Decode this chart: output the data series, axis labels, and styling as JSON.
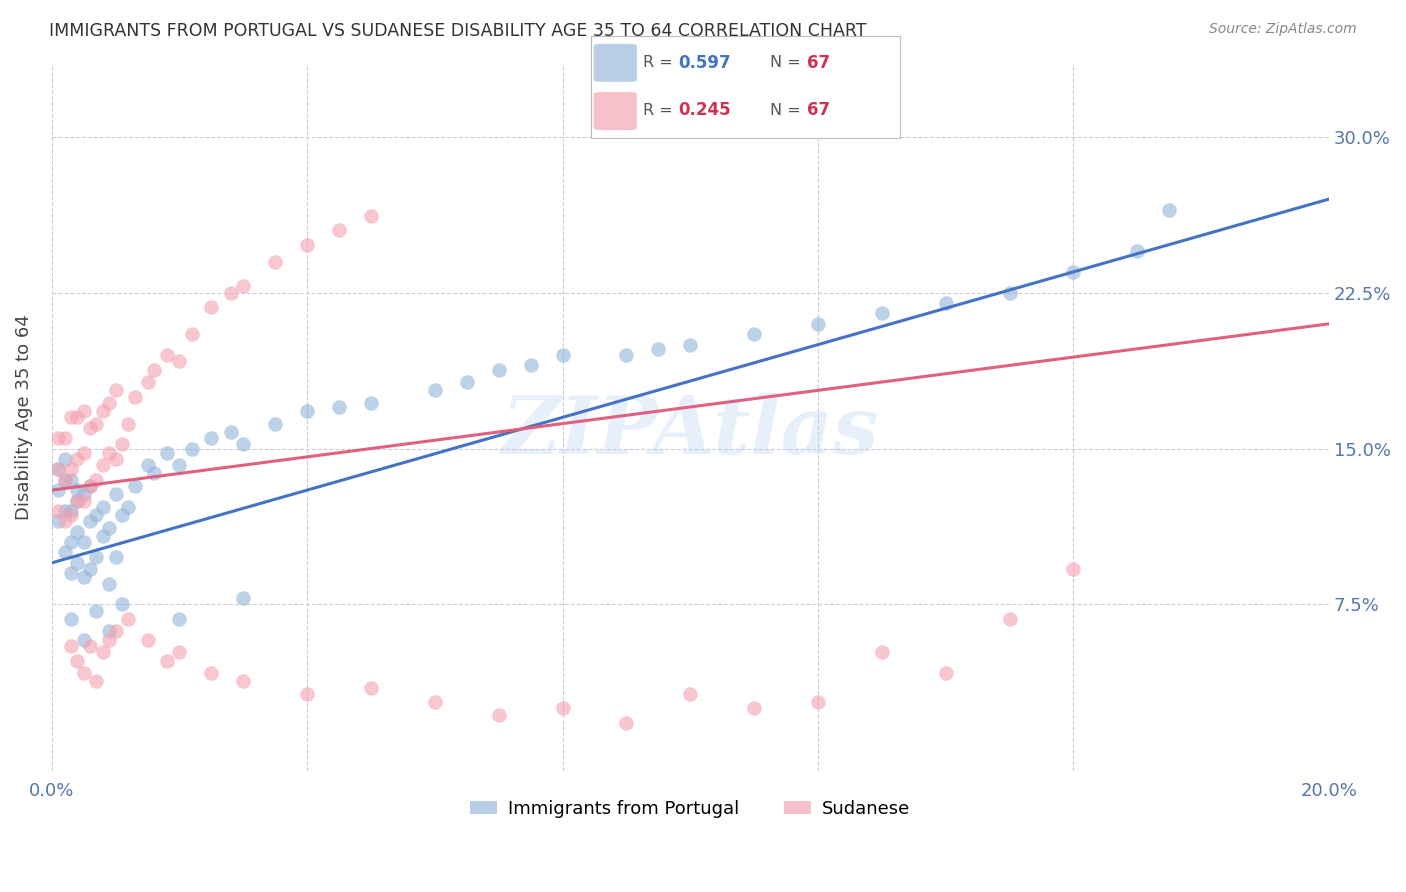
{
  "title": "IMMIGRANTS FROM PORTUGAL VS SUDANESE DISABILITY AGE 35 TO 64 CORRELATION CHART",
  "source": "Source: ZipAtlas.com",
  "ylabel": "Disability Age 35 to 64",
  "xlim": [
    0.0,
    0.2
  ],
  "ylim": [
    -0.005,
    0.335
  ],
  "yticks_right": [
    0.075,
    0.15,
    0.225,
    0.3
  ],
  "ytick_labels_right": [
    "7.5%",
    "15.0%",
    "22.5%",
    "30.0%"
  ],
  "watermark": "ZIPAtlas",
  "legend_label_blue": "Immigrants from Portugal",
  "legend_label_pink": "Sudanese",
  "blue_color": "#92B4D9",
  "pink_color": "#F4A0B0",
  "blue_line_color": "#4472C4",
  "pink_line_color": "#E06080",
  "axis_label_color": "#5577AA",
  "background_color": "#FFFFFF",
  "grid_color": "#CCCCDD",
  "portugal_x": [
    0.001,
    0.001,
    0.001,
    0.002,
    0.002,
    0.002,
    0.002,
    0.003,
    0.003,
    0.003,
    0.003,
    0.004,
    0.004,
    0.004,
    0.004,
    0.005,
    0.005,
    0.005,
    0.006,
    0.006,
    0.006,
    0.007,
    0.007,
    0.008,
    0.008,
    0.009,
    0.009,
    0.01,
    0.01,
    0.011,
    0.012,
    0.013,
    0.015,
    0.016,
    0.018,
    0.02,
    0.022,
    0.025,
    0.028,
    0.03,
    0.035,
    0.04,
    0.045,
    0.05,
    0.06,
    0.065,
    0.07,
    0.075,
    0.08,
    0.09,
    0.095,
    0.1,
    0.11,
    0.12,
    0.13,
    0.14,
    0.15,
    0.16,
    0.17,
    0.175,
    0.003,
    0.005,
    0.007,
    0.009,
    0.011,
    0.02,
    0.03
  ],
  "portugal_y": [
    0.115,
    0.13,
    0.14,
    0.1,
    0.12,
    0.135,
    0.145,
    0.09,
    0.105,
    0.12,
    0.135,
    0.095,
    0.11,
    0.125,
    0.13,
    0.088,
    0.105,
    0.128,
    0.092,
    0.115,
    0.132,
    0.098,
    0.118,
    0.108,
    0.122,
    0.085,
    0.112,
    0.098,
    0.128,
    0.118,
    0.122,
    0.132,
    0.142,
    0.138,
    0.148,
    0.142,
    0.15,
    0.155,
    0.158,
    0.152,
    0.162,
    0.168,
    0.17,
    0.172,
    0.178,
    0.182,
    0.188,
    0.19,
    0.195,
    0.195,
    0.198,
    0.2,
    0.205,
    0.21,
    0.215,
    0.22,
    0.225,
    0.235,
    0.245,
    0.265,
    0.068,
    0.058,
    0.072,
    0.062,
    0.075,
    0.068,
    0.078
  ],
  "sudanese_x": [
    0.001,
    0.001,
    0.001,
    0.002,
    0.002,
    0.002,
    0.003,
    0.003,
    0.003,
    0.004,
    0.004,
    0.004,
    0.005,
    0.005,
    0.005,
    0.006,
    0.006,
    0.007,
    0.007,
    0.008,
    0.008,
    0.009,
    0.009,
    0.01,
    0.01,
    0.011,
    0.012,
    0.013,
    0.015,
    0.016,
    0.018,
    0.02,
    0.022,
    0.025,
    0.028,
    0.03,
    0.035,
    0.04,
    0.045,
    0.05,
    0.003,
    0.004,
    0.005,
    0.006,
    0.007,
    0.008,
    0.009,
    0.01,
    0.012,
    0.015,
    0.018,
    0.02,
    0.025,
    0.03,
    0.04,
    0.05,
    0.06,
    0.07,
    0.08,
    0.09,
    0.1,
    0.11,
    0.12,
    0.13,
    0.14,
    0.15,
    0.16
  ],
  "sudanese_y": [
    0.12,
    0.14,
    0.155,
    0.115,
    0.135,
    0.155,
    0.118,
    0.14,
    0.165,
    0.125,
    0.145,
    0.165,
    0.125,
    0.148,
    0.168,
    0.132,
    0.16,
    0.135,
    0.162,
    0.142,
    0.168,
    0.148,
    0.172,
    0.145,
    0.178,
    0.152,
    0.162,
    0.175,
    0.182,
    0.188,
    0.195,
    0.192,
    0.205,
    0.218,
    0.225,
    0.228,
    0.24,
    0.248,
    0.255,
    0.262,
    0.055,
    0.048,
    0.042,
    0.055,
    0.038,
    0.052,
    0.058,
    0.062,
    0.068,
    0.058,
    0.048,
    0.052,
    0.042,
    0.038,
    0.032,
    0.035,
    0.028,
    0.022,
    0.025,
    0.018,
    0.032,
    0.025,
    0.028,
    0.052,
    0.042,
    0.068,
    0.092
  ],
  "blue_line_x0": 0.0,
  "blue_line_y0": 0.095,
  "blue_line_x1": 0.2,
  "blue_line_y1": 0.27,
  "pink_line_x0": 0.0,
  "pink_line_y0": 0.13,
  "pink_line_x1": 0.2,
  "pink_line_y1": 0.21
}
